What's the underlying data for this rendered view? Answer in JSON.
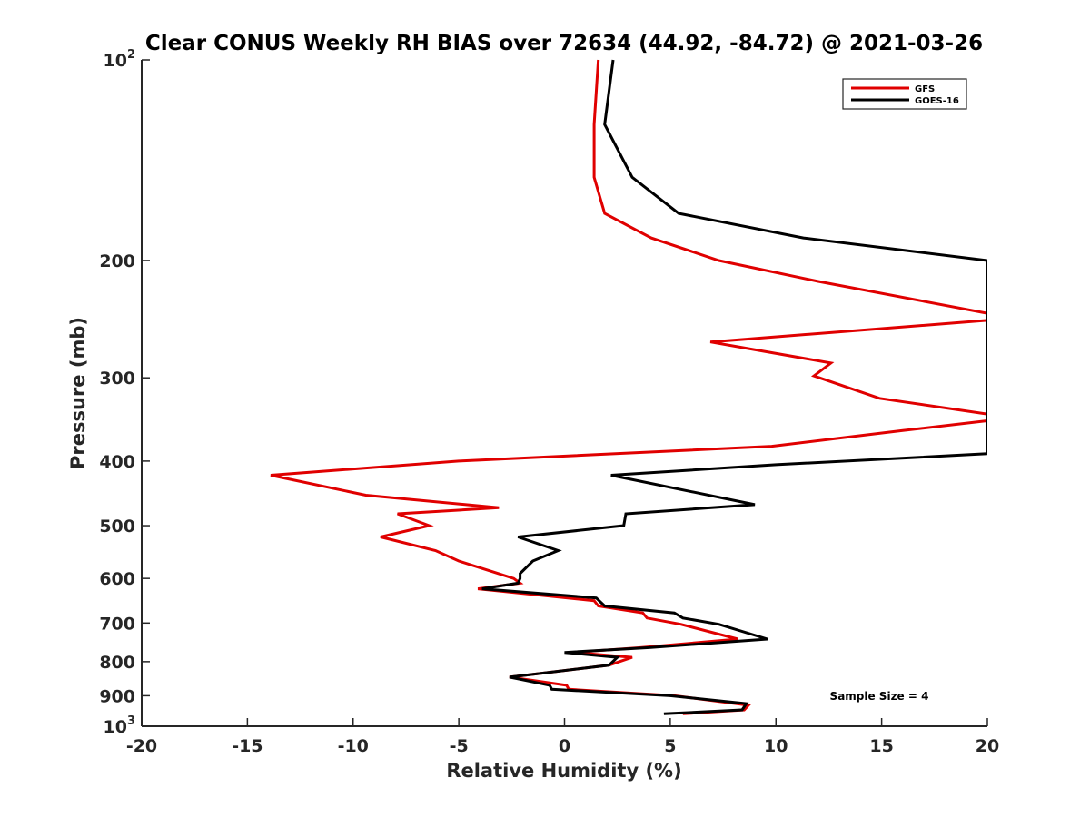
{
  "chart_data": {
    "type": "line",
    "title": "Clear CONUS Weekly RH BIAS over 72634 (44.92, -84.72) @ 2021-03-26",
    "xlabel": "Relative Humidity (%)",
    "ylabel": "Pressure (mb)",
    "xlim": [
      -20,
      20
    ],
    "ylim": [
      100,
      1000
    ],
    "y_scale": "log",
    "y_reversed": true,
    "x_ticks": [
      {
        "value": -20,
        "label": "-20"
      },
      {
        "value": -15,
        "label": "-15"
      },
      {
        "value": -10,
        "label": "-10"
      },
      {
        "value": -5,
        "label": "-5"
      },
      {
        "value": 0,
        "label": "0"
      },
      {
        "value": 5,
        "label": "5"
      },
      {
        "value": 10,
        "label": "10"
      },
      {
        "value": 15,
        "label": "15"
      },
      {
        "value": 20,
        "label": "20"
      }
    ],
    "y_ticks": [
      {
        "value": 100,
        "base": "10",
        "exp": "2"
      },
      {
        "value": 200,
        "base": "200",
        "exp": ""
      },
      {
        "value": 300,
        "base": "300",
        "exp": ""
      },
      {
        "value": 400,
        "base": "400",
        "exp": ""
      },
      {
        "value": 500,
        "base": "500",
        "exp": ""
      },
      {
        "value": 600,
        "base": "600",
        "exp": ""
      },
      {
        "value": 700,
        "base": "700",
        "exp": ""
      },
      {
        "value": 800,
        "base": "800",
        "exp": ""
      },
      {
        "value": 900,
        "base": "900",
        "exp": ""
      },
      {
        "value": 1000,
        "base": "10",
        "exp": "3"
      }
    ],
    "legend_position": "top-right",
    "annotation": "Sample Size = 4",
    "series": [
      {
        "name": "GFS",
        "color": "#e00000",
        "points": [
          [
            1.6,
            100
          ],
          [
            1.4,
            125
          ],
          [
            1.4,
            150
          ],
          [
            1.9,
            170
          ],
          [
            4.1,
            185
          ],
          [
            7.3,
            200
          ],
          [
            12.0,
            215
          ],
          [
            20.0,
            240
          ],
          [
            20.0,
            246
          ],
          [
            6.9,
            265
          ],
          [
            12.6,
            285
          ],
          [
            11.8,
            298
          ],
          [
            14.9,
            322
          ],
          [
            20.0,
            340
          ],
          [
            20.0,
            348
          ],
          [
            16.0,
            360
          ],
          [
            9.8,
            380
          ],
          [
            -5.0,
            400
          ],
          [
            -13.9,
            420
          ],
          [
            -9.4,
            450
          ],
          [
            -3.1,
            470
          ],
          [
            -7.9,
            480
          ],
          [
            -6.4,
            500
          ],
          [
            -8.7,
            520
          ],
          [
            -6.1,
            545
          ],
          [
            -5.0,
            565
          ],
          [
            -3.5,
            585
          ],
          [
            -2.4,
            600
          ],
          [
            -2.1,
            610
          ],
          [
            -4.1,
            622
          ],
          [
            1.4,
            648
          ],
          [
            1.6,
            660
          ],
          [
            3.7,
            676
          ],
          [
            3.9,
            688
          ],
          [
            5.5,
            703
          ],
          [
            8.2,
            740
          ],
          [
            3.6,
            762
          ],
          [
            0.4,
            775
          ],
          [
            3.2,
            788
          ],
          [
            2.1,
            810
          ],
          [
            -2.6,
            844
          ],
          [
            0.1,
            868
          ],
          [
            0.2,
            880
          ],
          [
            5.2,
            900
          ],
          [
            8.7,
            930
          ],
          [
            8.5,
            945
          ],
          [
            5.6,
            958
          ]
        ]
      },
      {
        "name": "GOES-16",
        "color": "#000000",
        "points": [
          [
            2.3,
            100
          ],
          [
            1.9,
            125
          ],
          [
            3.2,
            150
          ],
          [
            5.4,
            170
          ],
          [
            11.3,
            185
          ],
          [
            20.0,
            200
          ],
          [
            20.0,
            390
          ],
          [
            10.0,
            405
          ],
          [
            2.2,
            420
          ],
          [
            9.0,
            465
          ],
          [
            2.9,
            480
          ],
          [
            2.8,
            500
          ],
          [
            -2.2,
            520
          ],
          [
            -0.3,
            545
          ],
          [
            -1.5,
            565
          ],
          [
            -2.1,
            590
          ],
          [
            -2.1,
            600
          ],
          [
            -2.2,
            610
          ],
          [
            -3.9,
            622
          ],
          [
            1.5,
            642
          ],
          [
            1.9,
            660
          ],
          [
            5.2,
            676
          ],
          [
            5.6,
            688
          ],
          [
            7.3,
            703
          ],
          [
            9.6,
            740
          ],
          [
            4.0,
            762
          ],
          [
            0.0,
            775
          ],
          [
            2.5,
            788
          ],
          [
            2.1,
            810
          ],
          [
            -2.6,
            844
          ],
          [
            -0.7,
            868
          ],
          [
            -0.6,
            880
          ],
          [
            5.0,
            900
          ],
          [
            8.6,
            925
          ],
          [
            8.4,
            945
          ],
          [
            4.7,
            958
          ]
        ]
      }
    ]
  }
}
